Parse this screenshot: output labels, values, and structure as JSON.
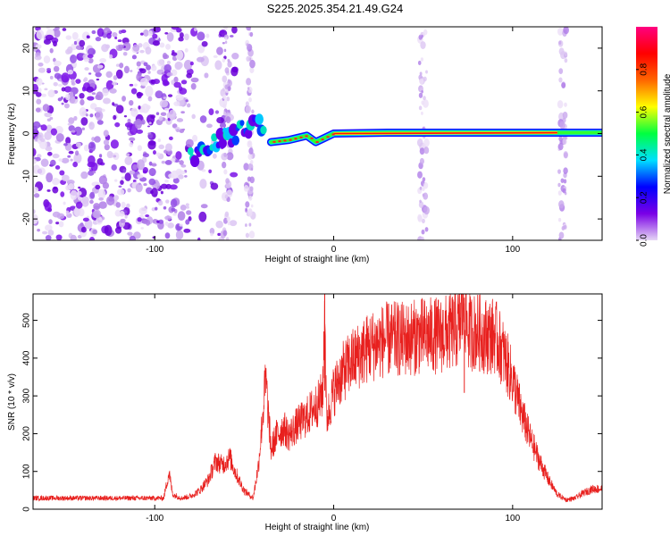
{
  "title": "S225.2025.354.21.49.G24",
  "chart_data": [
    {
      "type": "heatmap",
      "xlabel": "Height of straight line (km)",
      "ylabel": "Frequency (Hz)",
      "xlim": [
        -168,
        150
      ],
      "ylim": [
        -25,
        25
      ],
      "xticks": [
        -100,
        0,
        100
      ],
      "yticks": [
        -20,
        -10,
        0,
        10,
        20
      ],
      "colorbar": {
        "label": "Normalized spectral amplitude",
        "range": [
          0,
          1
        ],
        "ticks": [
          0.0,
          0.2,
          0.4,
          0.6,
          0.8
        ],
        "colors": [
          "#e6d7f5",
          "#7a00e6",
          "#0000ff",
          "#00e0ff",
          "#00ff40",
          "#ffff00",
          "#ff6600",
          "#ff0000",
          "#ff0080"
        ]
      },
      "features": {
        "noise_region_km": [
          -168,
          -80
        ],
        "rising_track": [
          [
            -80,
            -6
          ],
          [
            -70,
            -3
          ],
          [
            -60,
            -1
          ],
          [
            -50,
            1
          ],
          [
            -43,
            3.5
          ],
          [
            -38,
            1
          ]
        ],
        "main_track": [
          [
            -35,
            -2
          ],
          [
            -25,
            -1.5
          ],
          [
            -15,
            -0.5
          ],
          [
            -10,
            -2
          ],
          [
            -5,
            -1
          ],
          [
            0,
            0
          ],
          [
            30,
            0.2
          ],
          [
            150,
            0.2
          ]
        ],
        "main_track_peak_amplitude": 0.9,
        "vertical_artifacts_km": [
          -60,
          -47,
          50,
          128
        ]
      }
    },
    {
      "type": "line",
      "xlabel": "Height of straight line (km)",
      "ylabel": "SNR (10 * v/v)",
      "xlim": [
        -168,
        150
      ],
      "ylim": [
        0,
        570
      ],
      "xticks": [
        -100,
        0,
        100
      ],
      "yticks": [
        0,
        100,
        200,
        300,
        400,
        500
      ],
      "color": "#e8201e",
      "x": [
        -168,
        -150,
        -130,
        -110,
        -95,
        -92,
        -90,
        -85,
        -80,
        -75,
        -70,
        -66,
        -62,
        -58,
        -55,
        -50,
        -45,
        -42,
        -38,
        -35,
        -32,
        -28,
        -25,
        -20,
        -15,
        -12,
        -10,
        -8,
        -6,
        -5,
        -4,
        -2,
        0,
        5,
        10,
        15,
        20,
        25,
        30,
        40,
        50,
        60,
        70,
        73,
        75,
        80,
        85,
        90,
        95,
        100,
        105,
        110,
        115,
        120,
        125,
        130,
        135,
        140,
        145,
        150
      ],
      "y": [
        30,
        30,
        30,
        30,
        30,
        100,
        40,
        30,
        35,
        50,
        80,
        130,
        120,
        140,
        100,
        50,
        30,
        120,
        350,
        160,
        200,
        220,
        200,
        230,
        250,
        270,
        280,
        290,
        320,
        570,
        240,
        280,
        320,
        370,
        400,
        420,
        440,
        450,
        460,
        460,
        470,
        470,
        490,
        560,
        480,
        480,
        470,
        470,
        420,
        350,
        260,
        190,
        130,
        80,
        40,
        25,
        30,
        45,
        55,
        55
      ],
      "markers": [
        {
          "x": -5,
          "y": 570
        },
        {
          "x": 73,
          "y": 560
        }
      ]
    }
  ]
}
